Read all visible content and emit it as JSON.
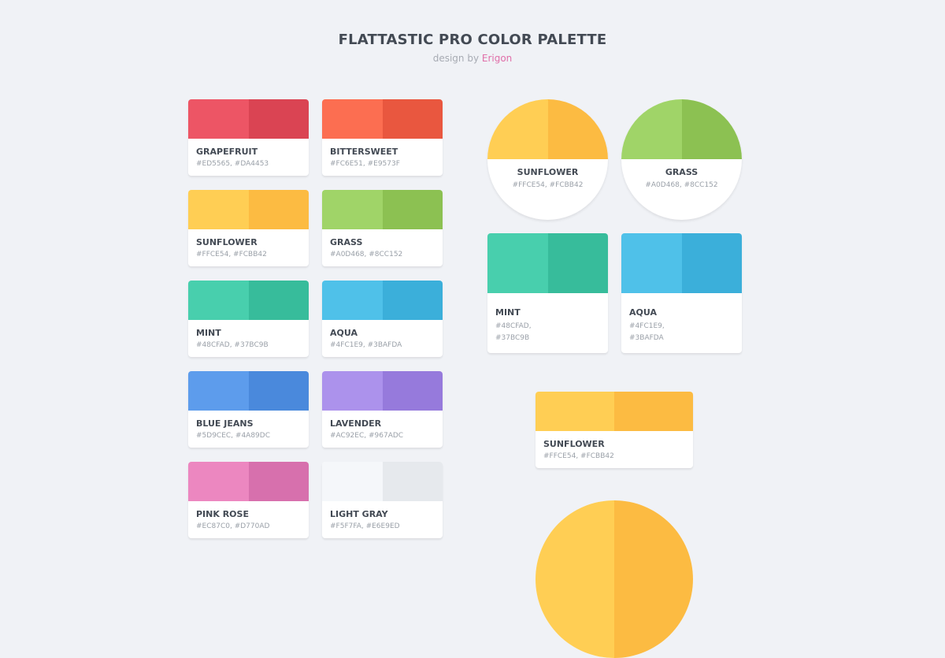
{
  "header": {
    "title": "FLATTASTIC PRO COLOR PALETTE",
    "byline_prefix": "design by",
    "byline_author": "Erigon"
  },
  "palette_cards": [
    {
      "name": "GRAPEFRUIT",
      "light": "#ED5565",
      "dark": "#DA4453",
      "hex_text": "#ED5565, #DA4453"
    },
    {
      "name": "BITTERSWEET",
      "light": "#FC6E51",
      "dark": "#E9573F",
      "hex_text": "#FC6E51, #E9573F"
    },
    {
      "name": "SUNFLOWER",
      "light": "#FFCE54",
      "dark": "#FCBB42",
      "hex_text": "#FFCE54, #FCBB42"
    },
    {
      "name": "GRASS",
      "light": "#A0D468",
      "dark": "#8CC152",
      "hex_text": "#A0D468, #8CC152"
    },
    {
      "name": "MINT",
      "light": "#48CFAD",
      "dark": "#37BC9B",
      "hex_text": "#48CFAD, #37BC9B"
    },
    {
      "name": "AQUA",
      "light": "#4FC1E9",
      "dark": "#3BAFDA",
      "hex_text": "#4FC1E9, #3BAFDA"
    },
    {
      "name": "BLUE JEANS",
      "light": "#5D9CEC",
      "dark": "#4A89DC",
      "hex_text": "#5D9CEC, #4A89DC"
    },
    {
      "name": "LAVENDER",
      "light": "#AC92EC",
      "dark": "#967ADC",
      "hex_text": "#AC92EC, #967ADC"
    },
    {
      "name": "PINK ROSE",
      "light": "#EC87C0",
      "dark": "#D770AD",
      "hex_text": "#EC87C0, #D770AD"
    },
    {
      "name": "LIGHT GRAY",
      "light": "#F5F7FA",
      "dark": "#E6E9ED",
      "hex_text": "#F5F7FA, #E6E9ED"
    }
  ],
  "circle_cards": [
    {
      "name": "SUNFLOWER",
      "light": "#FFCE54",
      "dark": "#FCBB42",
      "hex_text": "#FFCE54, #FCBB42"
    },
    {
      "name": "GRASS",
      "light": "#A0D468",
      "dark": "#8CC152",
      "hex_text": "#A0D468, #8CC152"
    }
  ],
  "tall_cards": [
    {
      "name": "MINT",
      "light": "#48CFAD",
      "dark": "#37BC9B",
      "hex_line1": "#48CFAD,",
      "hex_line2": "#37BC9B"
    },
    {
      "name": "AQUA",
      "light": "#4FC1E9",
      "dark": "#3BAFDA",
      "hex_line1": "#4FC1E9,",
      "hex_line2": "#3BAFDA"
    }
  ],
  "wide_card": {
    "name": "SUNFLOWER",
    "light": "#FFCE54",
    "dark": "#FCBB42",
    "hex_text": "#FFCE54, #FCBB42"
  },
  "big_circle": {
    "light": "#FFCE54",
    "dark": "#FCBB42"
  }
}
